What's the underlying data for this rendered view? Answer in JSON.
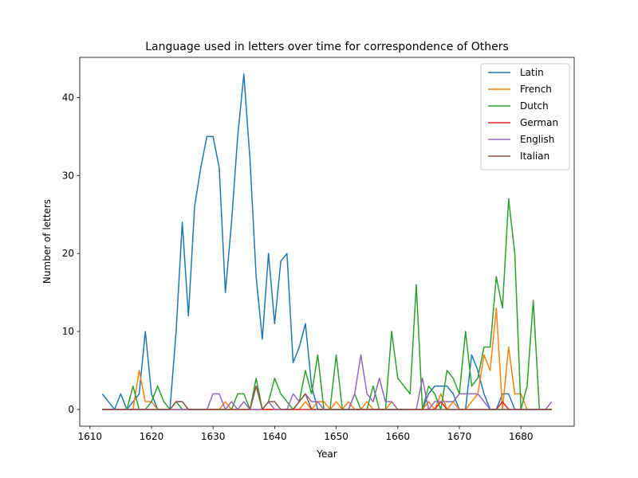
{
  "chart_data": {
    "type": "line",
    "title": "Language used in letters over time for correspondence of Others",
    "xlabel": "Year",
    "ylabel": "Number of letters",
    "xlim": [
      1608.35,
      1688.65
    ],
    "ylim": [
      -2.15,
      45.15
    ],
    "xticks": [
      1610,
      1620,
      1630,
      1640,
      1650,
      1660,
      1670,
      1680
    ],
    "yticks": [
      0,
      10,
      20,
      30,
      40
    ],
    "grid": false,
    "legend_position": "top-right",
    "x": [
      1612,
      1613,
      1614,
      1615,
      1616,
      1617,
      1618,
      1619,
      1620,
      1621,
      1622,
      1623,
      1624,
      1625,
      1626,
      1627,
      1628,
      1629,
      1630,
      1631,
      1632,
      1633,
      1634,
      1635,
      1636,
      1637,
      1638,
      1639,
      1640,
      1641,
      1642,
      1643,
      1644,
      1645,
      1646,
      1647,
      1648,
      1649,
      1650,
      1651,
      1652,
      1653,
      1654,
      1655,
      1656,
      1657,
      1658,
      1659,
      1660,
      1661,
      1662,
      1663,
      1664,
      1665,
      1666,
      1667,
      1668,
      1669,
      1670,
      1671,
      1672,
      1673,
      1674,
      1675,
      1676,
      1677,
      1678,
      1679,
      1680,
      1681,
      1682,
      1683,
      1684,
      1685
    ],
    "series": [
      {
        "name": "Latin",
        "color": "#1f77b4",
        "values": [
          2,
          1,
          0,
          2,
          0,
          1,
          2,
          10,
          2,
          0,
          0,
          0,
          10,
          24,
          12,
          26,
          31,
          35,
          35,
          31,
          15,
          24,
          35,
          43,
          32,
          17,
          9,
          20,
          11,
          19,
          20,
          6,
          8,
          11,
          3,
          0,
          0,
          0,
          0,
          0,
          0,
          0,
          0,
          0,
          0,
          0,
          0,
          0,
          0,
          0,
          0,
          0,
          0,
          2,
          3,
          3,
          3,
          2,
          0,
          0,
          7,
          5,
          2,
          0,
          0,
          2,
          2,
          0,
          0,
          0,
          0,
          0,
          0,
          0
        ]
      },
      {
        "name": "French",
        "color": "#ff7f0e",
        "values": [
          0,
          0,
          0,
          0,
          0,
          0,
          5,
          1,
          1,
          0,
          0,
          0,
          1,
          1,
          0,
          0,
          0,
          0,
          0,
          0,
          1,
          0,
          0,
          0,
          0,
          3,
          0,
          0,
          0,
          0,
          0,
          0,
          0,
          1,
          0,
          1,
          1,
          0,
          1,
          0,
          1,
          0,
          0,
          1,
          0,
          0,
          0,
          1,
          0,
          0,
          0,
          0,
          0,
          1,
          0,
          2,
          0,
          1,
          0,
          0,
          1,
          2,
          7,
          5,
          13,
          0,
          8,
          2,
          2,
          0,
          0,
          0,
          0,
          0
        ]
      },
      {
        "name": "Dutch",
        "color": "#2ca02c",
        "values": [
          0,
          0,
          0,
          0,
          0,
          3,
          0,
          0,
          1,
          3,
          1,
          0,
          1,
          0,
          0,
          0,
          0,
          0,
          0,
          0,
          0,
          0,
          2,
          2,
          0,
          4,
          0,
          1,
          4,
          2,
          1,
          0,
          1,
          5,
          2,
          7,
          0,
          0,
          7,
          0,
          0,
          2,
          0,
          0,
          3,
          0,
          0,
          10,
          4,
          3,
          2,
          16,
          0,
          3,
          2,
          0,
          5,
          4,
          2,
          10,
          3,
          4,
          8,
          8,
          17,
          13,
          27,
          20,
          0,
          3,
          14,
          0,
          0,
          0
        ]
      },
      {
        "name": "German",
        "color": "#d62728",
        "values": [
          0,
          0,
          0,
          0,
          0,
          0,
          0,
          0,
          0,
          0,
          0,
          0,
          0,
          0,
          0,
          0,
          0,
          0,
          0,
          0,
          0,
          0,
          0,
          0,
          0,
          0,
          0,
          0,
          0,
          0,
          0,
          0,
          0,
          0,
          0,
          0,
          0,
          0,
          0,
          0,
          0,
          0,
          0,
          0,
          0,
          0,
          0,
          0,
          0,
          0,
          0,
          0,
          0,
          0,
          0,
          1,
          0,
          0,
          0,
          0,
          0,
          0,
          0,
          0,
          0,
          1,
          0,
          0,
          0,
          0,
          0,
          0,
          0,
          0
        ]
      },
      {
        "name": "English",
        "color": "#9467bd",
        "values": [
          0,
          0,
          0,
          0,
          0,
          0,
          0,
          0,
          0,
          0,
          0,
          0,
          0,
          0,
          0,
          0,
          0,
          0,
          2,
          2,
          0,
          1,
          0,
          1,
          0,
          0,
          0,
          1,
          0,
          0,
          0,
          2,
          1,
          2,
          1,
          1,
          0,
          0,
          0,
          0,
          0,
          2,
          7,
          2,
          1,
          4,
          1,
          1,
          0,
          0,
          0,
          0,
          4,
          0,
          1,
          1,
          1,
          1,
          2,
          2,
          2,
          2,
          1,
          0,
          0,
          0,
          0,
          0,
          0,
          0,
          0,
          0,
          0,
          1
        ]
      },
      {
        "name": "Italian",
        "color": "#8c564b",
        "values": [
          0,
          0,
          0,
          0,
          0,
          0,
          0,
          0,
          0,
          0,
          0,
          0,
          1,
          1,
          0,
          0,
          0,
          0,
          0,
          0,
          0,
          0,
          0,
          0,
          0,
          3,
          0,
          1,
          1,
          0,
          0,
          0,
          1,
          2,
          0,
          0,
          0,
          0,
          0,
          0,
          0,
          0,
          0,
          0,
          0,
          0,
          0,
          0,
          0,
          0,
          0,
          0,
          0,
          0,
          0,
          0,
          0,
          0,
          0,
          0,
          0,
          0,
          0,
          0,
          0,
          0,
          0,
          0,
          0,
          0,
          0,
          0,
          0,
          0
        ]
      }
    ]
  }
}
